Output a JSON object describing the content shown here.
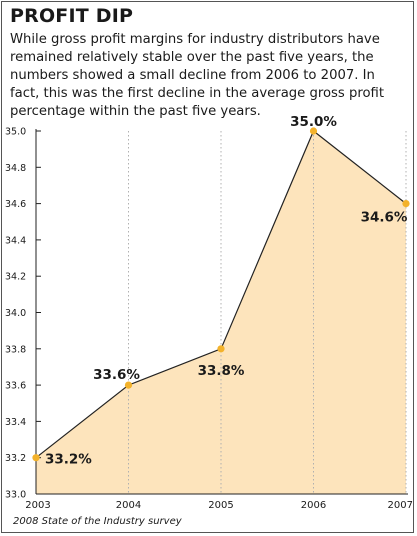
{
  "title": "PROFIT DIP",
  "subtitle": "While gross profit margins for industry distributors have remained relatively stable over the past five years, the numbers showed a small decline from 2006 to 2007. In fact, this was the first decline in the average gross profit percentage within the past five years.",
  "source": "2008 State of the Industry survey",
  "colors": {
    "fill": "#fde4bc",
    "line": "#222222",
    "marker": "#f3b22b",
    "grid": "#b0b0b0",
    "text": "#1a1a1a"
  },
  "chart_data": {
    "type": "area",
    "x": [
      "2003",
      "2004",
      "2005",
      "2006",
      "2007"
    ],
    "values": [
      33.2,
      33.6,
      33.8,
      35.0,
      34.6
    ],
    "data_labels": [
      "33.2%",
      "33.6%",
      "33.8%",
      "35.0%",
      "34.6%"
    ],
    "y_ticks": [
      "33.0",
      "33.2",
      "33.4",
      "33.6",
      "33.8",
      "34.0",
      "34.2",
      "34.4",
      "34.6",
      "34.8",
      "35.0"
    ],
    "ylim": [
      33.0,
      35.0
    ],
    "grid": "vertical dotted lines at each year",
    "legend": "none"
  }
}
